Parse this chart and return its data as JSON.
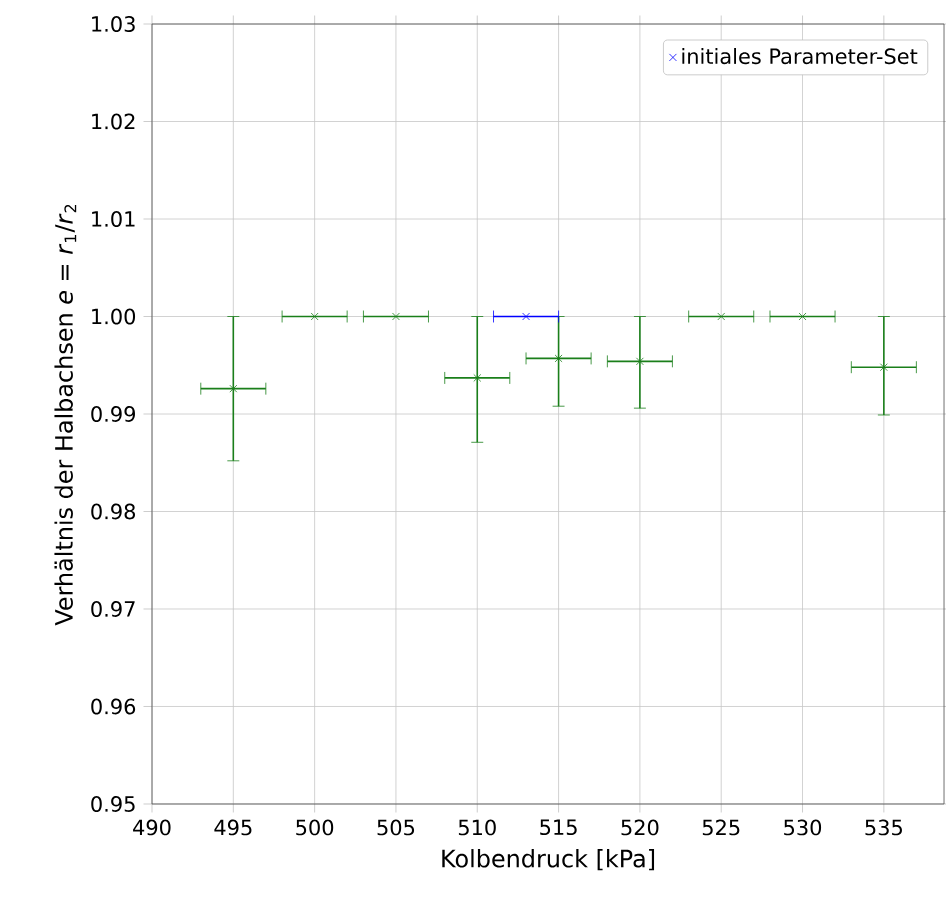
{
  "chart_data": {
    "type": "scatter",
    "xlabel": "Kolbendruck [kPa]",
    "ylabel": "Verhältnis der Halbachsen *e* = *r*$_{1}$/*r*$_{2}$",
    "xlim": [
      490,
      538.7
    ],
    "ylim": [
      0.95,
      1.03
    ],
    "xticks": [
      490,
      495,
      500,
      505,
      510,
      515,
      520,
      525,
      530,
      535
    ],
    "yticks": [
      0.95,
      0.96,
      0.97,
      0.98,
      0.99,
      {
        "value": 1,
        "label": "1.00"
      },
      1.01,
      1.02,
      1.03
    ],
    "grid": true,
    "legend": "top right",
    "marker": "cross",
    "series": [
      {
        "color": "#1a7f1a",
        "x": [
          495,
          500,
          505,
          510,
          515,
          520,
          525,
          530,
          535
        ],
        "values": [
          0.9926,
          1.0,
          1.0,
          0.9937,
          0.9957,
          0.9954,
          1.0,
          1.0,
          0.9948
        ],
        "errors": [
          [
            0.9852,
            1.0
          ],
          null,
          null,
          [
            0.9871,
            1.0
          ],
          [
            0.9908,
            1.0
          ],
          [
            0.9906,
            1.0
          ],
          null,
          null,
          [
            0.9899,
            1.0
          ]
        ],
        "xerrors": [
          2,
          2,
          2,
          2,
          2,
          2,
          2,
          2,
          2
        ]
      },
      {
        "name": "initiales Parameter-Set",
        "color": "#0000ff",
        "x": [
          513
        ],
        "values": [
          1.0
        ],
        "errors": [
          null
        ],
        "xerrors": [
          2
        ]
      }
    ]
  }
}
